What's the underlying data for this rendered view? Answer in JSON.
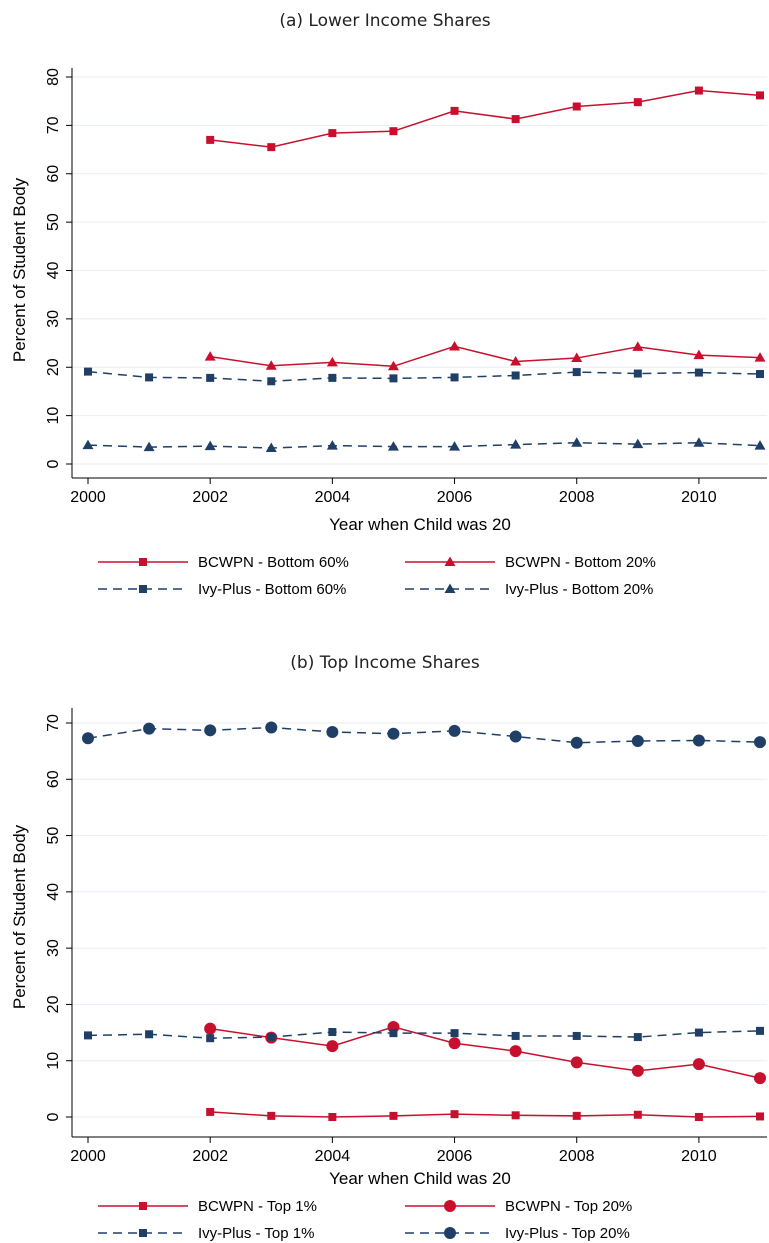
{
  "colors": {
    "bcwpn": "#c8102e",
    "ivy": "#1f3f66",
    "grid": "#e8eef4"
  },
  "chart_data": [
    {
      "type": "line",
      "title": "(a) Lower Income Shares",
      "xlabel": "Year when Child was 20",
      "ylabel": "Percent of Student Body",
      "xlim": [
        2000,
        2011
      ],
      "ylim": [
        0,
        80
      ],
      "xticks": [
        2000,
        2002,
        2004,
        2006,
        2008,
        2010
      ],
      "yticks": [
        0,
        10,
        20,
        30,
        40,
        50,
        60,
        70,
        80
      ],
      "grid": true,
      "legend_position": "bottom",
      "series": [
        {
          "name": "BCWPN - Bottom 60%",
          "style": "solid",
          "marker": "square",
          "color": "#c8102e",
          "x": [
            2002,
            2003,
            2004,
            2005,
            2006,
            2007,
            2008,
            2009,
            2010,
            2011
          ],
          "y": [
            67.0,
            65.5,
            68.4,
            68.8,
            73.0,
            71.3,
            73.9,
            74.8,
            77.2,
            76.2
          ]
        },
        {
          "name": "BCWPN - Bottom 20%",
          "style": "solid",
          "marker": "triangle",
          "color": "#c8102e",
          "x": [
            2002,
            2003,
            2004,
            2005,
            2006,
            2007,
            2008,
            2009,
            2010,
            2011
          ],
          "y": [
            22.2,
            20.3,
            21.0,
            20.2,
            24.3,
            21.2,
            21.9,
            24.2,
            22.5,
            22.0
          ]
        },
        {
          "name": "Ivy-Plus - Bottom 60%",
          "style": "dashed",
          "marker": "square",
          "color": "#1f3f66",
          "x": [
            2000,
            2001,
            2002,
            2003,
            2004,
            2005,
            2006,
            2007,
            2008,
            2009,
            2010,
            2011
          ],
          "y": [
            19.1,
            17.9,
            17.8,
            17.1,
            17.8,
            17.7,
            17.9,
            18.3,
            19.0,
            18.7,
            18.9,
            18.6
          ]
        },
        {
          "name": "Ivy-Plus - Bottom 20%",
          "style": "dashed",
          "marker": "triangle",
          "color": "#1f3f66",
          "x": [
            2000,
            2001,
            2002,
            2003,
            2004,
            2005,
            2006,
            2007,
            2008,
            2009,
            2010,
            2011
          ],
          "y": [
            3.9,
            3.5,
            3.7,
            3.3,
            3.8,
            3.6,
            3.6,
            4.0,
            4.4,
            4.1,
            4.4,
            3.8
          ]
        }
      ]
    },
    {
      "type": "line",
      "title": "(b) Top Income Shares",
      "xlabel": "Year when Child was 20",
      "ylabel": "Percent of Student Body",
      "xlim": [
        2000,
        2011
      ],
      "ylim": [
        0,
        70
      ],
      "xticks": [
        2000,
        2002,
        2004,
        2006,
        2008,
        2010
      ],
      "yticks": [
        0,
        10,
        20,
        30,
        40,
        50,
        60,
        70
      ],
      "grid": true,
      "legend_position": "bottom",
      "series": [
        {
          "name": "BCWPN - Top 1%",
          "style": "solid",
          "marker": "square",
          "color": "#c8102e",
          "x": [
            2002,
            2003,
            2004,
            2005,
            2006,
            2007,
            2008,
            2009,
            2010,
            2011
          ],
          "y": [
            0.9,
            0.2,
            0.0,
            0.2,
            0.5,
            0.3,
            0.2,
            0.4,
            0.0,
            0.1
          ]
        },
        {
          "name": "BCWPN - Top 20%",
          "style": "solid",
          "marker": "circle",
          "color": "#c8102e",
          "x": [
            2002,
            2003,
            2004,
            2005,
            2006,
            2007,
            2008,
            2009,
            2010,
            2011
          ],
          "y": [
            15.7,
            14.1,
            12.6,
            16.0,
            13.1,
            11.7,
            9.7,
            8.2,
            9.4,
            6.9
          ]
        },
        {
          "name": "Ivy-Plus - Top 1%",
          "style": "dashed",
          "marker": "square",
          "color": "#1f3f66",
          "x": [
            2000,
            2001,
            2002,
            2003,
            2004,
            2005,
            2006,
            2007,
            2008,
            2009,
            2010,
            2011
          ],
          "y": [
            14.5,
            14.7,
            14.0,
            14.2,
            15.1,
            14.9,
            14.9,
            14.4,
            14.4,
            14.2,
            15.0,
            15.3
          ]
        },
        {
          "name": "Ivy-Plus - Top 20%",
          "style": "dashed",
          "marker": "circle",
          "color": "#1f3f66",
          "x": [
            2000,
            2001,
            2002,
            2003,
            2004,
            2005,
            2006,
            2007,
            2008,
            2009,
            2010,
            2011
          ],
          "y": [
            67.3,
            69.0,
            68.7,
            69.2,
            68.4,
            68.1,
            68.6,
            67.6,
            66.5,
            66.8,
            66.9,
            66.6
          ]
        }
      ]
    }
  ]
}
